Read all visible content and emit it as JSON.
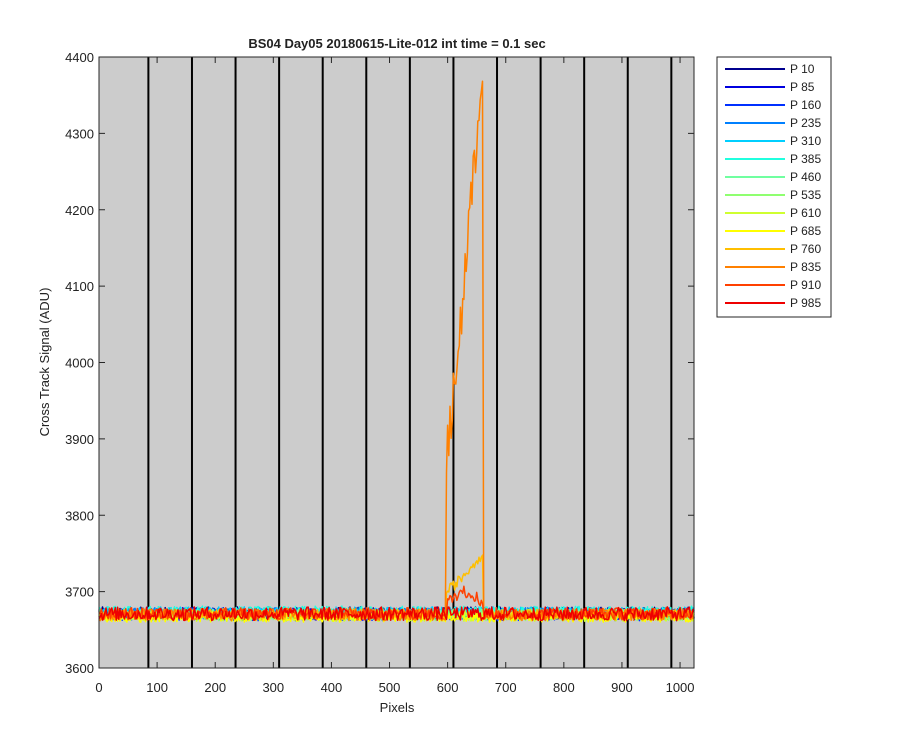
{
  "colors": {
    "axes_background": "#cccccc",
    "figure_background": "#ffffff",
    "vertical_lines": "#000000"
  },
  "chart_data": {
    "type": "line",
    "title": "BS04 Day05 20180615-Lite-012 int time = 0.1 sec",
    "xlabel": "Pixels",
    "ylabel": "Cross Track Signal (ADU)",
    "xlim": [
      0,
      1024
    ],
    "ylim": [
      3600,
      4400
    ],
    "xticks": [
      0,
      100,
      200,
      300,
      400,
      500,
      600,
      700,
      800,
      900,
      1000
    ],
    "yticks": [
      3600,
      3700,
      3800,
      3900,
      4000,
      4100,
      4200,
      4300,
      4400
    ],
    "grid": false,
    "legend_position": "outside-right",
    "vertical_lines_x": [
      85,
      160,
      235,
      310,
      385,
      460,
      535,
      610,
      685,
      760,
      835,
      910,
      985
    ],
    "series": [
      {
        "name": "P 10",
        "color": "#00008f",
        "baseline": 3672,
        "noise": 8
      },
      {
        "name": "P 85",
        "color": "#0000df",
        "baseline": 3671,
        "noise": 8
      },
      {
        "name": "P 160",
        "color": "#0030ff",
        "baseline": 3670,
        "noise": 8
      },
      {
        "name": "P 235",
        "color": "#0080ff",
        "baseline": 3671,
        "noise": 8
      },
      {
        "name": "P 310",
        "color": "#00cfff",
        "baseline": 3672,
        "noise": 8
      },
      {
        "name": "P 385",
        "color": "#20ffdf",
        "baseline": 3673,
        "noise": 8
      },
      {
        "name": "P 460",
        "color": "#70ffa0",
        "baseline": 3670,
        "noise": 7
      },
      {
        "name": "P 535",
        "color": "#8fff70",
        "baseline": 3669,
        "noise": 7
      },
      {
        "name": "P 610",
        "color": "#cfff30",
        "baseline": 3668,
        "noise": 7
      },
      {
        "name": "P 685",
        "color": "#ffff00",
        "baseline": 3667,
        "noise": 7
      },
      {
        "name": "P 760",
        "color": "#ffbf00",
        "baseline": 3670,
        "noise": 7,
        "features": [
          {
            "x_start": 598,
            "x_end": 660,
            "shape": "ramp",
            "from": 3700,
            "to": 3750
          }
        ]
      },
      {
        "name": "P 835",
        "color": "#ff8000",
        "baseline": 3670,
        "noise": 8,
        "features": [
          {
            "x_start": 598,
            "x_end": 660,
            "shape": "ramp",
            "from": 3880,
            "to": 4390
          }
        ]
      },
      {
        "name": "P 910",
        "color": "#ff4000",
        "baseline": 3671,
        "noise": 8,
        "features": [
          {
            "x_start": 600,
            "x_end": 660,
            "shape": "bump",
            "from": 3685,
            "to": 3700
          }
        ]
      },
      {
        "name": "P 985",
        "color": "#ee0000",
        "baseline": 3671,
        "noise": 9
      }
    ]
  }
}
